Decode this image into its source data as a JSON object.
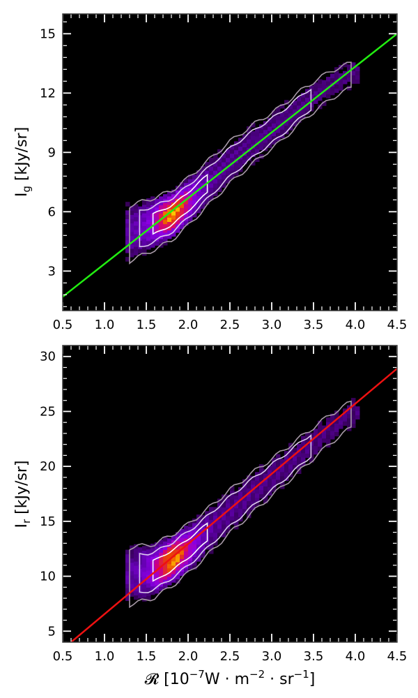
{
  "chart_data": [
    {
      "type": "heatmap",
      "panel": "top",
      "ylabel": {
        "main": "I",
        "sub": "g",
        "rest": " [kJy/sr]"
      },
      "xlim": [
        0.5,
        4.5
      ],
      "ylim": [
        1.0,
        16.0
      ],
      "xticks": [
        0.5,
        1.0,
        1.5,
        2.0,
        2.5,
        3.0,
        3.5,
        4.0,
        4.5
      ],
      "xtick_labels": [
        "0.5",
        "1.0",
        "1.5",
        "2.0",
        "2.5",
        "3.0",
        "3.5",
        "4.0",
        "4.5"
      ],
      "yticks": [
        3,
        6,
        9,
        12,
        15
      ],
      "ytick_labels": [
        "3",
        "6",
        "9",
        "12",
        "15"
      ],
      "fit_line": {
        "x": [
          0.5,
          4.5
        ],
        "y": [
          1.7,
          15.0
        ],
        "color": "#22ee11"
      },
      "ridge": [
        [
          1.3,
          4.9
        ],
        [
          1.6,
          5.4
        ],
        [
          1.8,
          5.8
        ],
        [
          2.0,
          6.5
        ],
        [
          2.2,
          7.3
        ],
        [
          2.5,
          8.5
        ],
        [
          2.8,
          9.5
        ],
        [
          3.1,
          10.4
        ],
        [
          3.4,
          11.5
        ],
        [
          3.7,
          12.4
        ],
        [
          3.95,
          12.9
        ]
      ],
      "contour_widths": [
        0.55,
        0.95,
        1.4
      ]
    },
    {
      "type": "heatmap",
      "panel": "bottom",
      "ylabel": {
        "main": "I",
        "sub": "r",
        "rest": " [kJy/sr]"
      },
      "xlabel": {
        "pre": "𝓡 [10",
        "sup1": "−7",
        "mid": "W · m",
        "sup2": "−2",
        "mid2": " · sr",
        "sup3": "−1",
        "post": "]"
      },
      "xlim": [
        0.5,
        4.5
      ],
      "ylim": [
        4.0,
        31.0
      ],
      "xticks": [
        0.5,
        1.0,
        1.5,
        2.0,
        2.5,
        3.0,
        3.5,
        4.0,
        4.5
      ],
      "xtick_labels": [
        "0.5",
        "1.0",
        "1.5",
        "2.0",
        "2.5",
        "3.0",
        "3.5",
        "4.0",
        "4.5"
      ],
      "yticks": [
        5,
        10,
        15,
        20,
        25,
        30
      ],
      "ytick_labels": [
        "5",
        "10",
        "15",
        "20",
        "25",
        "30"
      ],
      "fit_line": {
        "x": [
          0.6,
          4.5
        ],
        "y": [
          4.0,
          28.9
        ],
        "color": "#ee1111"
      },
      "ridge": [
        [
          1.3,
          10.0
        ],
        [
          1.6,
          10.5
        ],
        [
          1.8,
          11.4
        ],
        [
          2.0,
          12.5
        ],
        [
          2.2,
          13.8
        ],
        [
          2.5,
          15.9
        ],
        [
          2.8,
          17.8
        ],
        [
          3.1,
          19.6
        ],
        [
          3.4,
          21.5
        ],
        [
          3.7,
          23.4
        ],
        [
          3.95,
          24.7
        ]
      ],
      "contour_widths": [
        1.0,
        1.8,
        2.6
      ]
    }
  ]
}
